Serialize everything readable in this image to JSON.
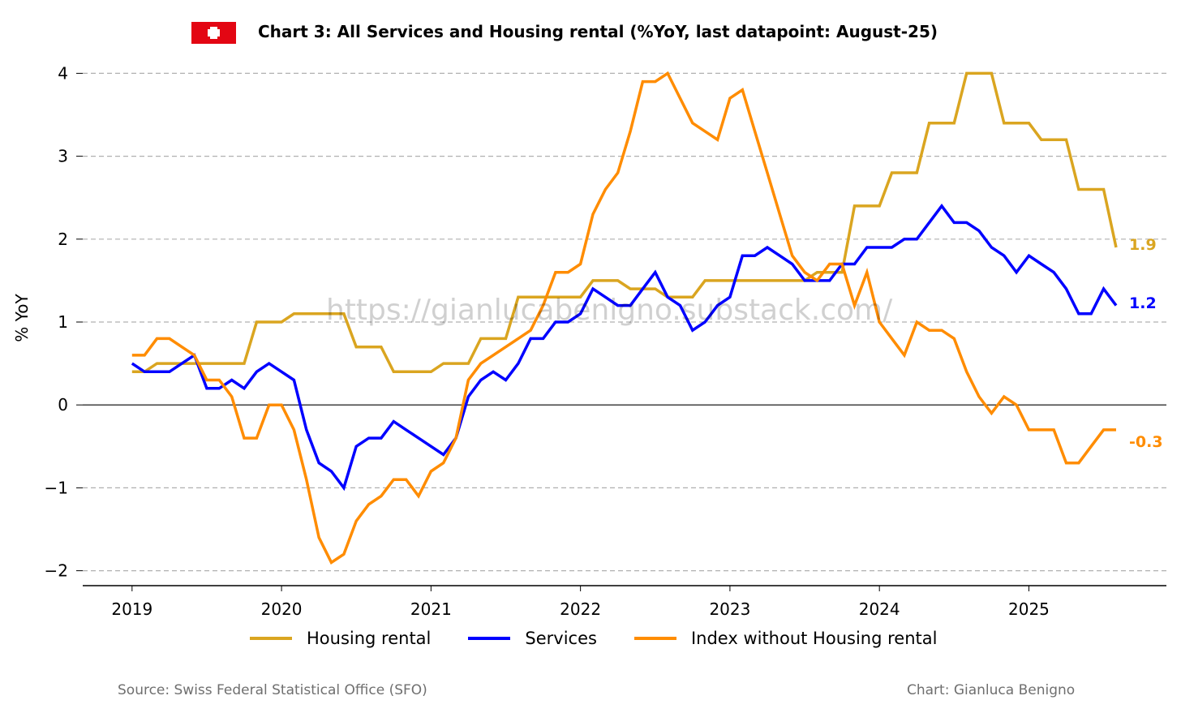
{
  "header": {
    "title": "Chart 3: All Services and Housing rental (%YoY, last datapoint: August-25)",
    "flag_icon": "swiss-flag"
  },
  "footer": {
    "source": "Source: Swiss Federal Statistical Office (SFO)",
    "credit": "Chart: Gianluca Benigno"
  },
  "watermark": "https://gianlucabenigno.substack.com/",
  "chart_data": {
    "type": "line",
    "title": "Chart 3: All Services and Housing rental (%YoY, last datapoint: August-25)",
    "xlabel": "",
    "ylabel": "% YoY",
    "x_start": "2019-01",
    "frequency": "monthly",
    "xlim": [
      2018.67,
      2025.92
    ],
    "ylim": [
      -2.18,
      4.18
    ],
    "xticks": [
      2019,
      2020,
      2021,
      2022,
      2023,
      2024,
      2025
    ],
    "xtick_labels": [
      "2019",
      "2020",
      "2021",
      "2022",
      "2023",
      "2024",
      "2025"
    ],
    "yticks": [
      -2,
      -1,
      0,
      1,
      2,
      3,
      4
    ],
    "ytick_labels": [
      "−2",
      "−1",
      "0",
      "1",
      "2",
      "3",
      "4"
    ],
    "grid": "horizontal dashed",
    "legend_position": "bottom-center",
    "series": [
      {
        "name": "Housing rental",
        "color": "#DAA520",
        "end_label": "1.9",
        "values": [
          0.4,
          0.4,
          0.5,
          0.5,
          0.5,
          0.5,
          0.5,
          0.5,
          0.5,
          0.5,
          1.0,
          1.0,
          1.0,
          1.1,
          1.1,
          1.1,
          1.1,
          1.1,
          0.7,
          0.7,
          0.7,
          0.4,
          0.4,
          0.4,
          0.4,
          0.5,
          0.5,
          0.5,
          0.8,
          0.8,
          0.8,
          1.3,
          1.3,
          1.3,
          1.3,
          1.3,
          1.3,
          1.5,
          1.5,
          1.5,
          1.4,
          1.4,
          1.4,
          1.3,
          1.3,
          1.3,
          1.5,
          1.5,
          1.5,
          1.5,
          1.5,
          1.5,
          1.5,
          1.5,
          1.5,
          1.6,
          1.6,
          1.6,
          2.4,
          2.4,
          2.4,
          2.8,
          2.8,
          2.8,
          3.4,
          3.4,
          3.4,
          4.0,
          4.0,
          4.0,
          3.4,
          3.4,
          3.4,
          3.2,
          3.2,
          3.2,
          2.6,
          2.6,
          2.6,
          1.9
        ]
      },
      {
        "name": "Services",
        "color": "#0000FF",
        "end_label": "1.2",
        "values": [
          0.5,
          0.4,
          0.4,
          0.4,
          0.5,
          0.6,
          0.2,
          0.2,
          0.3,
          0.2,
          0.4,
          0.5,
          0.4,
          0.3,
          -0.3,
          -0.7,
          -0.8,
          -1.0,
          -0.5,
          -0.4,
          -0.4,
          -0.2,
          -0.3,
          -0.4,
          -0.5,
          -0.6,
          -0.4,
          0.1,
          0.3,
          0.4,
          0.3,
          0.5,
          0.8,
          0.8,
          1.0,
          1.0,
          1.1,
          1.4,
          1.3,
          1.2,
          1.2,
          1.4,
          1.6,
          1.3,
          1.2,
          0.9,
          1.0,
          1.2,
          1.3,
          1.8,
          1.8,
          1.9,
          1.8,
          1.7,
          1.5,
          1.5,
          1.5,
          1.7,
          1.7,
          1.9,
          1.9,
          1.9,
          2.0,
          2.0,
          2.2,
          2.4,
          2.2,
          2.2,
          2.1,
          1.9,
          1.8,
          1.6,
          1.8,
          1.7,
          1.6,
          1.4,
          1.1,
          1.1,
          1.4,
          1.2
        ]
      },
      {
        "name": "Index without Housing rental",
        "color": "#FF8C00",
        "end_label": "-0.3",
        "values": [
          0.6,
          0.6,
          0.8,
          0.8,
          0.7,
          0.6,
          0.3,
          0.3,
          0.1,
          -0.4,
          -0.4,
          0.0,
          0.0,
          -0.3,
          -0.9,
          -1.6,
          -1.9,
          -1.8,
          -1.4,
          -1.2,
          -1.1,
          -0.9,
          -0.9,
          -1.1,
          -0.8,
          -0.7,
          -0.4,
          0.3,
          0.5,
          0.6,
          0.7,
          0.8,
          0.9,
          1.2,
          1.6,
          1.6,
          1.7,
          2.3,
          2.6,
          2.8,
          3.3,
          3.9,
          3.9,
          4.0,
          3.7,
          3.4,
          3.3,
          3.2,
          3.7,
          3.8,
          3.3,
          2.8,
          2.3,
          1.8,
          1.6,
          1.5,
          1.7,
          1.7,
          1.2,
          1.6,
          1.0,
          0.8,
          0.6,
          1.0,
          0.9,
          0.9,
          0.8,
          0.4,
          0.1,
          -0.1,
          0.1,
          0.0,
          -0.3,
          -0.3,
          -0.3,
          -0.7,
          -0.7,
          -0.5,
          -0.3,
          -0.3
        ]
      }
    ]
  }
}
